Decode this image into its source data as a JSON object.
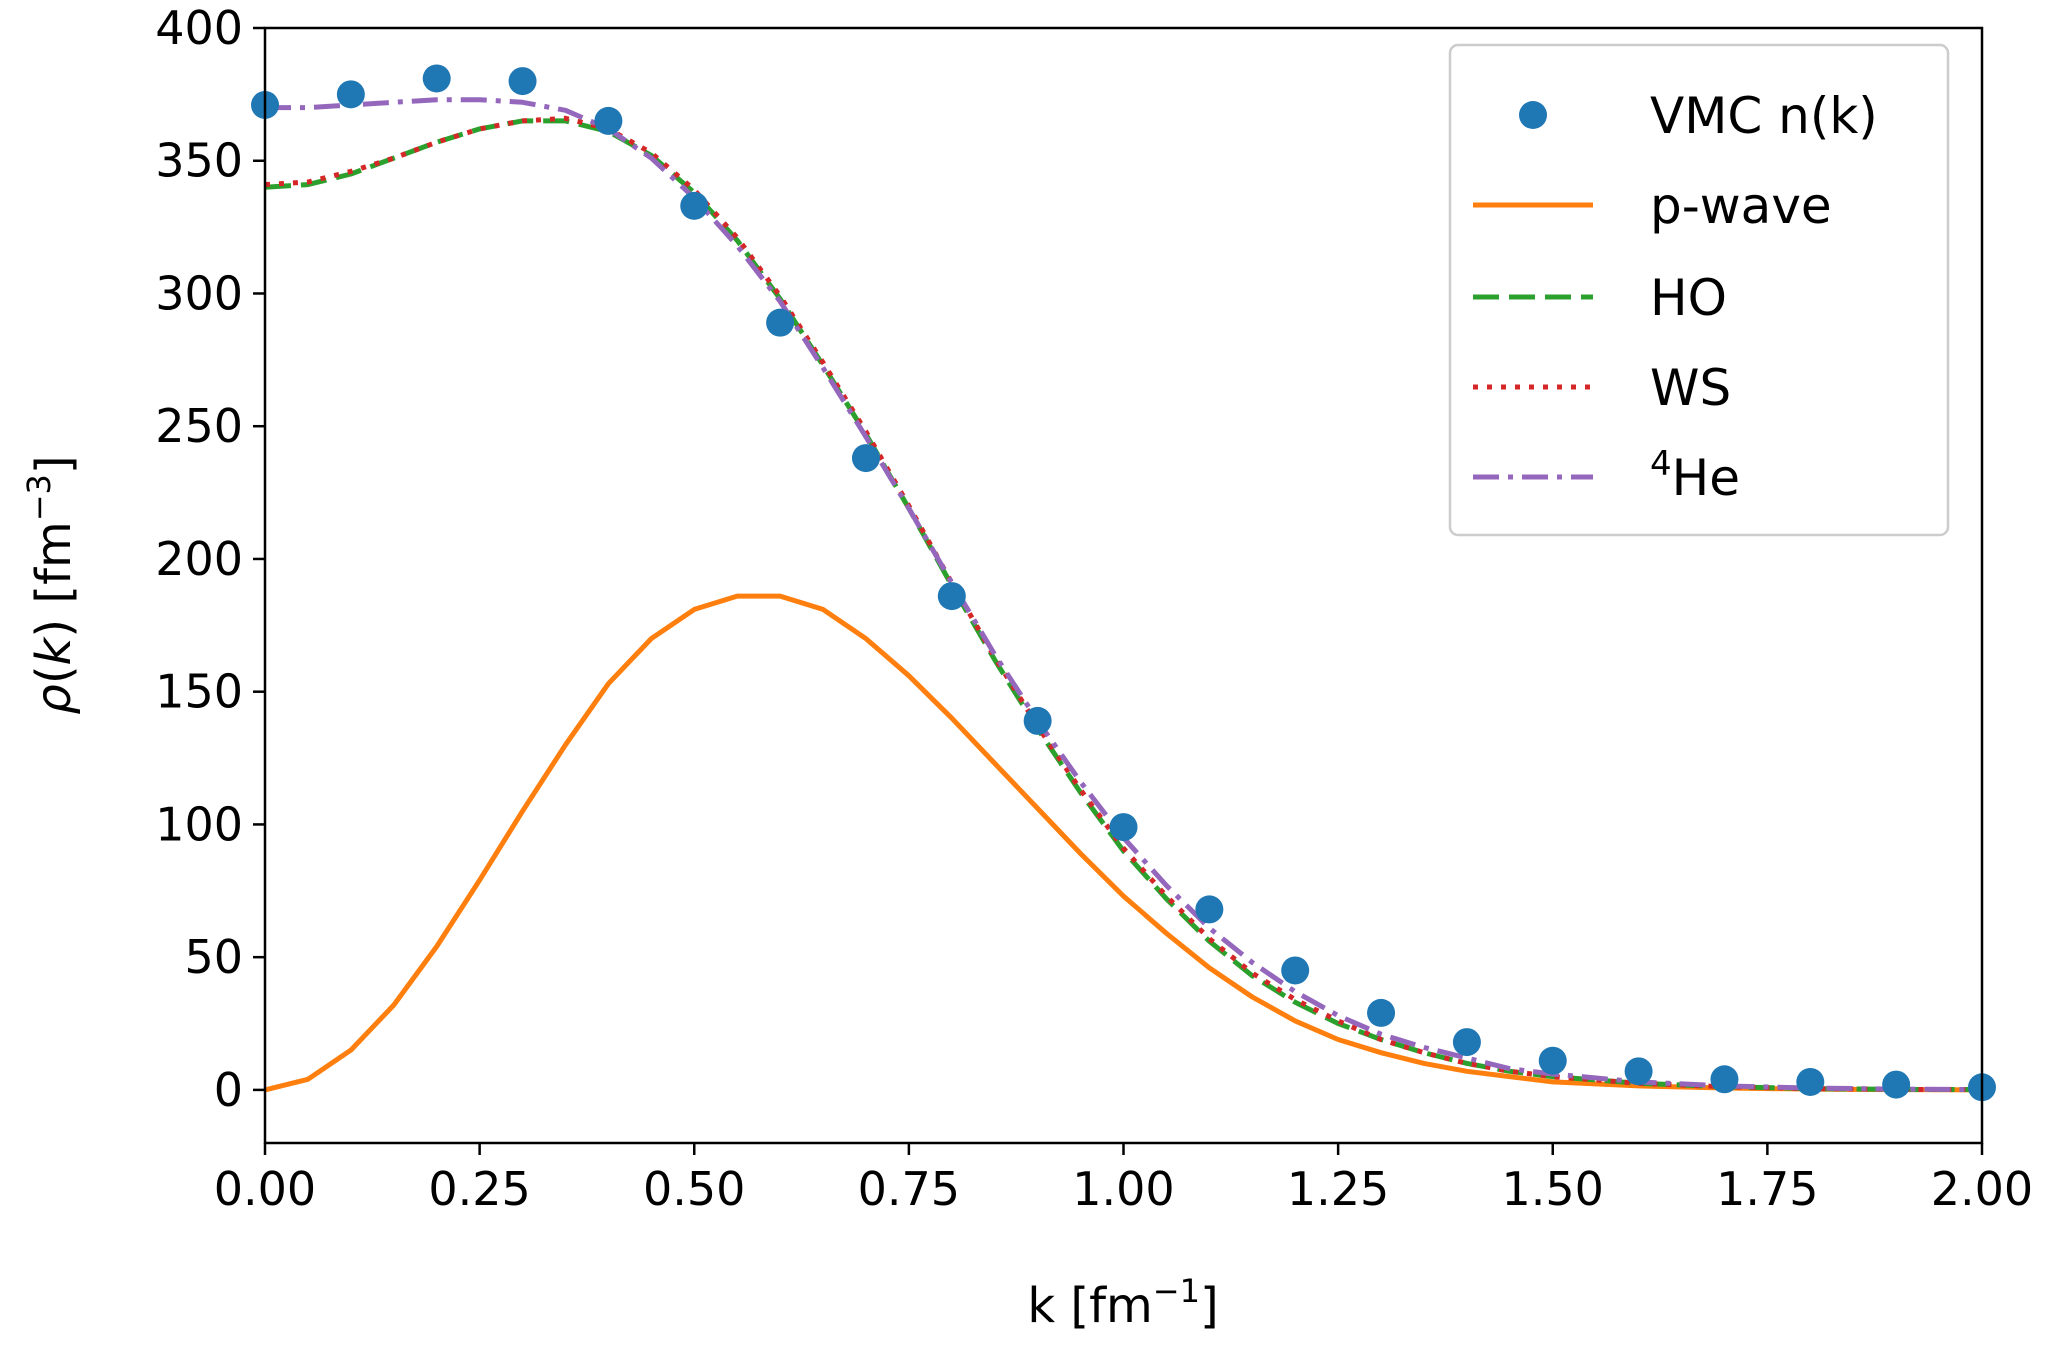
{
  "chart_data": {
    "type": "line",
    "title": "",
    "xlabel": {
      "base": "k [fm",
      "sup": "−1",
      "tail": "]"
    },
    "ylabel": {
      "rho": "ρ",
      "k": "k",
      "rest": " [fm",
      "sup": "−3",
      "tail": "]"
    },
    "xlim": [
      0.0,
      2.0
    ],
    "ylim": [
      -20,
      400
    ],
    "xticks": [
      0.0,
      0.25,
      0.5,
      0.75,
      1.0,
      1.25,
      1.5,
      1.75,
      2.0
    ],
    "xtick_labels": [
      "0.00",
      "0.25",
      "0.50",
      "0.75",
      "1.00",
      "1.25",
      "1.50",
      "1.75",
      "2.00"
    ],
    "yticks": [
      0,
      50,
      100,
      150,
      200,
      250,
      300,
      350,
      400
    ],
    "ytick_labels": [
      "0",
      "50",
      "100",
      "150",
      "200",
      "250",
      "300",
      "350",
      "400"
    ],
    "grid": false,
    "legend_position": "top-right",
    "series": [
      {
        "name": "VMC n(k)",
        "style": "markers",
        "color": "#1f77b4",
        "x": [
          0.0,
          0.1,
          0.2,
          0.3,
          0.4,
          0.5,
          0.6,
          0.7,
          0.8,
          0.9,
          1.0,
          1.1,
          1.2,
          1.3,
          1.4,
          1.5,
          1.6,
          1.7,
          1.8,
          1.9,
          2.0
        ],
        "y": [
          371,
          375,
          381,
          380,
          365,
          333,
          289,
          238,
          186,
          139,
          99,
          68,
          45,
          29,
          18,
          11,
          7,
          4,
          3,
          2,
          1
        ]
      },
      {
        "name": "p-wave",
        "style": "solid",
        "color": "#ff7f0e",
        "x": [
          0.0,
          0.05,
          0.1,
          0.15,
          0.2,
          0.25,
          0.3,
          0.35,
          0.4,
          0.45,
          0.5,
          0.55,
          0.6,
          0.65,
          0.7,
          0.75,
          0.8,
          0.85,
          0.9,
          0.95,
          1.0,
          1.05,
          1.1,
          1.15,
          1.2,
          1.25,
          1.3,
          1.35,
          1.4,
          1.45,
          1.5,
          1.6,
          1.7,
          1.8,
          1.9,
          2.0
        ],
        "y": [
          0,
          4,
          15,
          32,
          54,
          79,
          105,
          130,
          153,
          170,
          181,
          186,
          186,
          181,
          170,
          156,
          140,
          123,
          106,
          89,
          73,
          59,
          46,
          35,
          26,
          19,
          14,
          10,
          7,
          5,
          3,
          1.5,
          0.7,
          0.3,
          0.1,
          0
        ]
      },
      {
        "name": "HO",
        "style": "dashed",
        "color": "#2ca02c",
        "x": [
          0.0,
          0.05,
          0.1,
          0.15,
          0.2,
          0.25,
          0.3,
          0.35,
          0.4,
          0.45,
          0.5,
          0.55,
          0.6,
          0.65,
          0.7,
          0.75,
          0.8,
          0.85,
          0.9,
          0.95,
          1.0,
          1.05,
          1.1,
          1.15,
          1.2,
          1.25,
          1.3,
          1.35,
          1.4,
          1.45,
          1.5,
          1.6,
          1.7,
          1.8,
          1.9,
          2.0
        ],
        "y": [
          340,
          341,
          345,
          351,
          357,
          362,
          365,
          365,
          361,
          352,
          338,
          320,
          298,
          273,
          247,
          219,
          190,
          162,
          136,
          112,
          90,
          72,
          56,
          43,
          33,
          25,
          19,
          14,
          10,
          7,
          5,
          2.5,
          1.2,
          0.5,
          0.2,
          0.1
        ]
      },
      {
        "name": "WS",
        "style": "dotted",
        "color": "#d62728",
        "x": [
          0.0,
          0.05,
          0.1,
          0.15,
          0.2,
          0.25,
          0.3,
          0.35,
          0.4,
          0.45,
          0.5,
          0.55,
          0.6,
          0.65,
          0.7,
          0.75,
          0.8,
          0.85,
          0.9,
          0.95,
          1.0,
          1.05,
          1.1,
          1.15,
          1.2,
          1.25,
          1.3,
          1.35,
          1.4,
          1.45,
          1.5,
          1.6,
          1.7,
          1.8,
          1.9,
          2.0
        ],
        "y": [
          341,
          342,
          346,
          351,
          357,
          362,
          365,
          366,
          362,
          353,
          339,
          321,
          299,
          274,
          248,
          220,
          191,
          163,
          137,
          113,
          91,
          73,
          57,
          44,
          34,
          26,
          19,
          14,
          10,
          7,
          5,
          2.5,
          1.2,
          0.5,
          0.2,
          0.1
        ]
      },
      {
        "name": "⁴He",
        "style": "dashdot",
        "color": "#9467bd",
        "x": [
          0.0,
          0.05,
          0.1,
          0.15,
          0.2,
          0.25,
          0.3,
          0.35,
          0.4,
          0.45,
          0.5,
          0.55,
          0.6,
          0.65,
          0.7,
          0.75,
          0.8,
          0.85,
          0.9,
          0.95,
          1.0,
          1.05,
          1.1,
          1.15,
          1.2,
          1.25,
          1.3,
          1.35,
          1.4,
          1.45,
          1.5,
          1.6,
          1.7,
          1.8,
          1.9,
          2.0
        ],
        "y": [
          370,
          370,
          371,
          372,
          373,
          373,
          372,
          369,
          362,
          351,
          336,
          318,
          297,
          272,
          246,
          219,
          191,
          164,
          139,
          116,
          95,
          77,
          61,
          48,
          37,
          28,
          21,
          16,
          12,
          8,
          6,
          3,
          1.5,
          0.7,
          0.3,
          0.1
        ]
      }
    ],
    "legend": {
      "items": [
        "VMC n(k)",
        "p-wave",
        "HO",
        "WS"
      ],
      "he_label": {
        "sup": "4",
        "base": "He"
      }
    }
  }
}
